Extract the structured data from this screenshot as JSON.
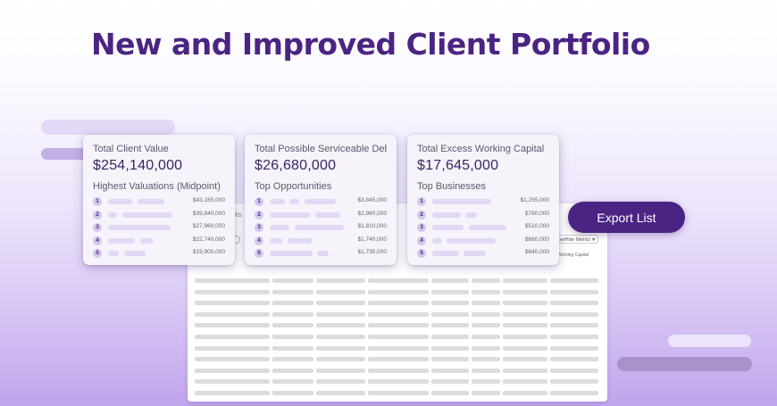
{
  "title": "New and Improved Client Portfolio",
  "table": {
    "tab_label": "ults",
    "show_hide_label": "Show/Hide Metrics ▼",
    "working_capital_label": "Working Capital"
  },
  "cards": [
    {
      "title": "Total Client Value",
      "value": "$254,140,000",
      "subtitle": "Highest Valuations (Midpoint)",
      "items": [
        {
          "rank": "1",
          "amount": "$43,165,000"
        },
        {
          "rank": "2",
          "amount": "$39,840,000"
        },
        {
          "rank": "3",
          "amount": "$27,960,000"
        },
        {
          "rank": "4",
          "amount": "$22,740,000"
        },
        {
          "rank": "5",
          "amount": "$19,900,000"
        }
      ]
    },
    {
      "title": "Total Possible Serviceable Debt",
      "value": "$26,680,000",
      "subtitle": "Top Opportunities",
      "items": [
        {
          "rank": "1",
          "amount": "$3,845,000"
        },
        {
          "rank": "2",
          "amount": "$2,980,000"
        },
        {
          "rank": "3",
          "amount": "$1,810,000"
        },
        {
          "rank": "4",
          "amount": "$1,740,000"
        },
        {
          "rank": "5",
          "amount": "$1,735,000"
        }
      ]
    },
    {
      "title": "Total Excess Working Capital",
      "value": "$17,645,000",
      "subtitle": "Top Businesses",
      "items": [
        {
          "rank": "1",
          "amount": "$1,255,000"
        },
        {
          "rank": "2",
          "amount": "$780,000"
        },
        {
          "rank": "3",
          "amount": "$510,000"
        },
        {
          "rank": "4",
          "amount": "$660,000"
        },
        {
          "rank": "5",
          "amount": "$640,000"
        }
      ]
    }
  ],
  "export_button": {
    "label": "Export List"
  }
}
